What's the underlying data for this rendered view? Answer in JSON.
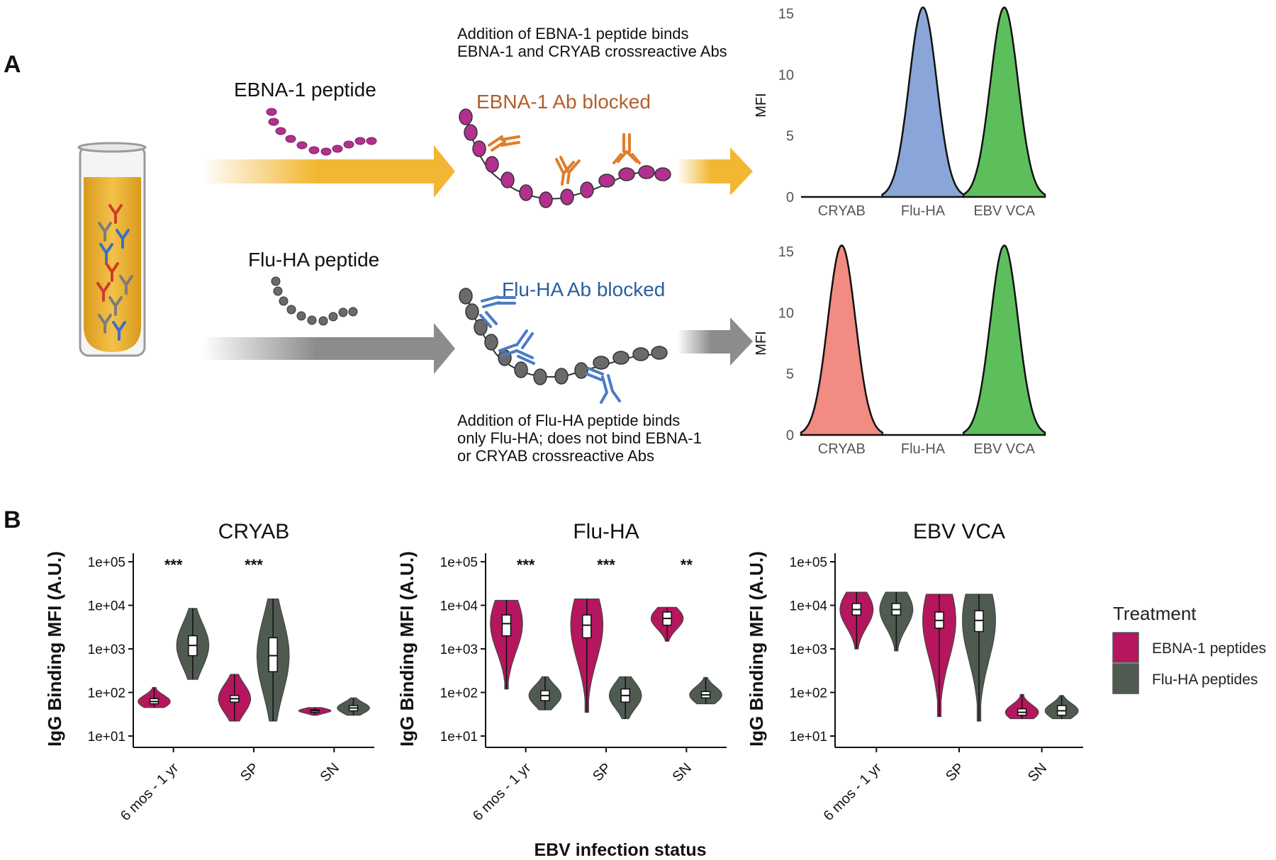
{
  "panel_a": {
    "label": "A",
    "top_peptide_label": "EBNA-1 peptide",
    "bottom_peptide_label": "Flu-HA peptide",
    "top_note_lines": [
      "Addition of EBNA-1 peptide binds",
      "EBNA-1 and CRYAB crossreactive Abs"
    ],
    "top_blocked_label": "EBNA-1 Ab blocked",
    "bottom_blocked_label": "Flu-HA Ab blocked",
    "bottom_note_lines": [
      "Addition of Flu-HA peptide binds",
      "only Flu-HA; does not bind EBNA-1",
      "or CRYAB crossreactive Abs"
    ],
    "colors": {
      "ebna_arrow": "#f2b632",
      "flu_arrow": "#8c8c8c",
      "ebna_peptide": "#b3308f",
      "flu_peptide": "#6a6a6a",
      "ebna_ab": "#e07d2a",
      "flu_ab": "#4a7cc4",
      "tube_liquid": "#e9b228"
    }
  },
  "chart_data": [
    {
      "type": "area",
      "title": "",
      "ylabel": "MFI",
      "xlabel": "",
      "ylim": [
        0,
        15
      ],
      "yticks": [
        "0",
        "5",
        "10",
        "15"
      ],
      "categories": [
        "CRYAB",
        "Flu-HA",
        "EBV VCA"
      ],
      "peaks": [
        0,
        15.5,
        15.5
      ],
      "colors": [
        "#f28b82",
        "#8aa6d8",
        "#5cbf5c"
      ]
    },
    {
      "type": "area",
      "title": "",
      "ylabel": "MFI",
      "xlabel": "",
      "ylim": [
        0,
        15
      ],
      "yticks": [
        "0",
        "5",
        "10",
        "15"
      ],
      "categories": [
        "CRYAB",
        "Flu-HA",
        "EBV VCA"
      ],
      "peaks": [
        15.5,
        0,
        15.5
      ],
      "colors": [
        "#f28b82",
        "#8aa6d8",
        "#5cbf5c"
      ]
    },
    {
      "type": "violin",
      "title": "CRYAB",
      "ylabel": "IgG Binding MFI (A.U.)",
      "xlabel": "EBV infection status",
      "yscale": "log10",
      "ylim": [
        10,
        100000
      ],
      "yticks": [
        "1e+01",
        "1e+02",
        "1e+03",
        "1e+04",
        "1e+05"
      ],
      "categories": [
        "6 mos - 1 yr",
        "SP",
        "SN"
      ],
      "significance": [
        "***",
        "***",
        ""
      ],
      "series": [
        {
          "name": "EBNA-1 peptides",
          "min": [
            45,
            22,
            30
          ],
          "q1": [
            55,
            60,
            35
          ],
          "median": [
            62,
            72,
            38
          ],
          "q3": [
            72,
            85,
            40
          ],
          "max": [
            130,
            260,
            45
          ]
        },
        {
          "name": "Flu-HA peptides",
          "min": [
            200,
            22,
            30
          ],
          "q1": [
            700,
            300,
            38
          ],
          "median": [
            1200,
            700,
            44
          ],
          "q3": [
            2000,
            1800,
            50
          ],
          "max": [
            8500,
            14000,
            75
          ]
        }
      ]
    },
    {
      "type": "violin",
      "title": "Flu-HA",
      "ylabel": "IgG Binding MFI (A.U.)",
      "xlabel": "EBV infection status",
      "yscale": "log10",
      "ylim": [
        10,
        100000
      ],
      "yticks": [
        "1e+01",
        "1e+02",
        "1e+03",
        "1e+04",
        "1e+05"
      ],
      "categories": [
        "6 mos - 1 yr",
        "SP",
        "SN"
      ],
      "significance": [
        "***",
        "***",
        "**"
      ],
      "series": [
        {
          "name": "EBNA-1 peptides",
          "min": [
            120,
            35,
            1500
          ],
          "q1": [
            2000,
            1800,
            3500
          ],
          "median": [
            3800,
            3500,
            5000
          ],
          "q3": [
            6000,
            6000,
            7000
          ],
          "max": [
            13000,
            14000,
            9000
          ]
        },
        {
          "name": "Flu-HA peptides",
          "min": [
            40,
            25,
            55
          ],
          "q1": [
            65,
            60,
            75
          ],
          "median": [
            85,
            85,
            88
          ],
          "q3": [
            110,
            120,
            105
          ],
          "max": [
            230,
            230,
            220
          ]
        }
      ]
    },
    {
      "type": "violin",
      "title": "EBV VCA",
      "ylabel": "IgG Binding MFI (A.U.)",
      "xlabel": "EBV infection status",
      "yscale": "log10",
      "ylim": [
        10,
        100000
      ],
      "yticks": [
        "1e+01",
        "1e+02",
        "1e+03",
        "1e+04",
        "1e+05"
      ],
      "categories": [
        "6 mos - 1 yr",
        "SP",
        "SN"
      ],
      "significance": [
        "",
        "",
        ""
      ],
      "series": [
        {
          "name": "EBNA-1 peptides",
          "min": [
            1000,
            28,
            25
          ],
          "q1": [
            6000,
            3000,
            30
          ],
          "median": [
            8000,
            4500,
            35
          ],
          "q3": [
            11000,
            7000,
            42
          ],
          "max": [
            20000,
            18000,
            90
          ]
        },
        {
          "name": "Flu-HA peptides",
          "min": [
            900,
            22,
            25
          ],
          "q1": [
            6000,
            2500,
            30
          ],
          "median": [
            8000,
            4500,
            38
          ],
          "q3": [
            11000,
            7500,
            50
          ],
          "max": [
            20000,
            18000,
            85
          ]
        }
      ]
    }
  ],
  "panel_b": {
    "label": "B",
    "xlabel": "EBV infection status",
    "legend": {
      "title": "Treatment",
      "items": [
        {
          "label": "EBNA-1 peptides",
          "color": "#b5165e"
        },
        {
          "label": "Flu-HA peptides",
          "color": "#4f5a50"
        }
      ]
    }
  }
}
